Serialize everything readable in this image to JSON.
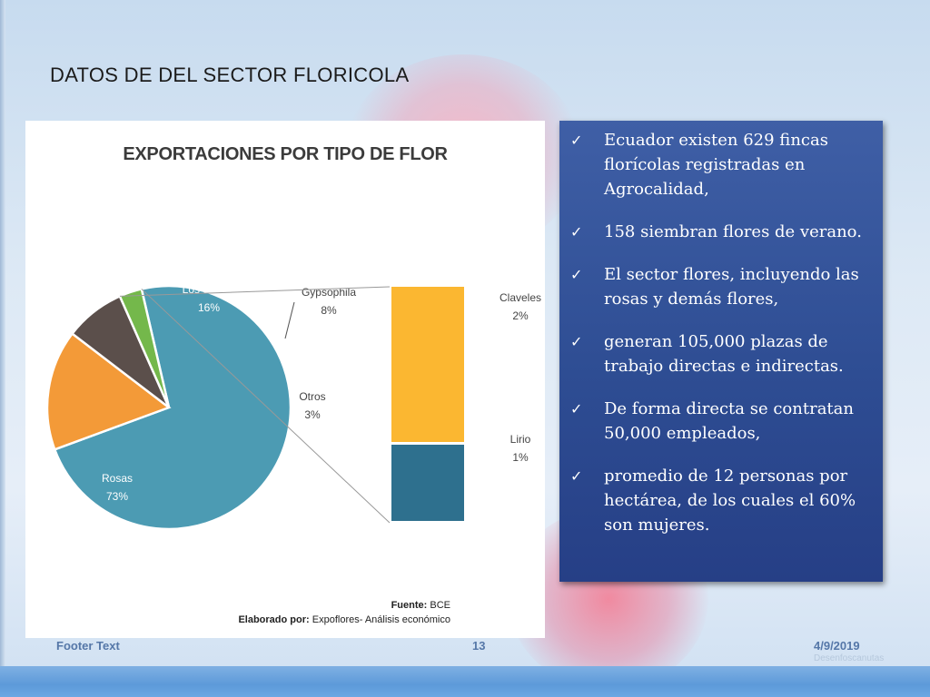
{
  "slide": {
    "title": "DATOS DE DEL SECTOR FLORICOLA",
    "footer_text": "Footer Text",
    "page_number": "13",
    "date": "4/9/2019",
    "footer_note": "Desenfoscanutas"
  },
  "chart_data": {
    "type": "pie",
    "title": "EXPORTACIONES POR TIPO DE FLOR",
    "slices": [
      {
        "label": "Rosas",
        "value": 73,
        "display": "73%",
        "color": "#4c9bb3"
      },
      {
        "label": "Los demás",
        "value": 16,
        "display": "16%",
        "color": "#f39a38"
      },
      {
        "label": "Gypsophila",
        "value": 8,
        "display": "8%",
        "color": "#5b4f4b"
      },
      {
        "label": "Otros",
        "value": 3,
        "display": "3%",
        "color": "#74b84b"
      }
    ],
    "breakdown_of": "Otros",
    "breakdown": [
      {
        "label": "Claveles",
        "value": 2,
        "display": "2%",
        "color": "#fbb731"
      },
      {
        "label": "Lirio",
        "value": 1,
        "display": "1%",
        "color": "#2e708e"
      }
    ],
    "source_label": "Fuente:",
    "source_value": "BCE",
    "prepared_label": "Elaborado por:",
    "prepared_value": "Expoflores- Análisis económico"
  },
  "bullets": [
    {
      "text": "Ecuador existen 629 fincas florícolas registradas en Agrocalidad,"
    },
    {
      "text": "158 siembran flores de verano."
    },
    {
      "text": "El sector flores, incluyendo las rosas y demás flores,"
    },
    {
      "text": "generan 105,000 plazas de trabajo directas e indirectas."
    },
    {
      "text": "De forma directa se contratan 50,000 empleados,"
    },
    {
      "text": "promedio de 12 personas por hectárea, de los cuales el 60% son mujeres."
    }
  ],
  "icons": {
    "bullet": "checkmark-icon"
  },
  "colors": {
    "panel": "#2e4d93",
    "accent": "#5577a8"
  }
}
